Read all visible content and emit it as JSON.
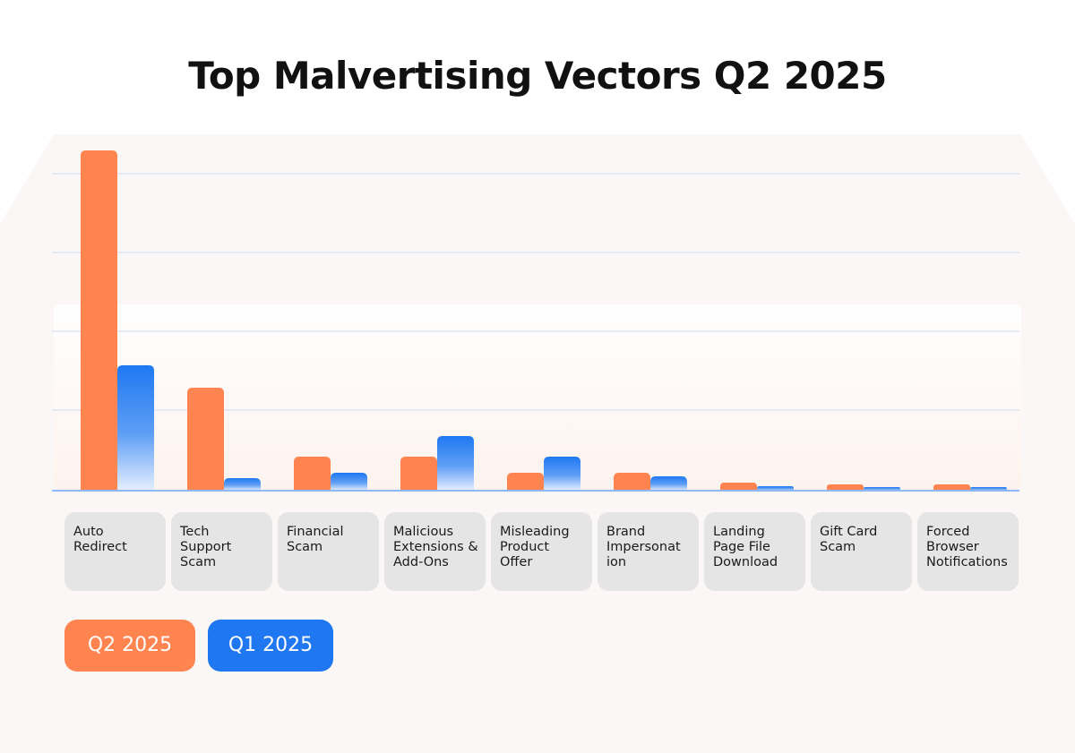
{
  "chart_data": {
    "type": "bar",
    "title": "Top Malvertising Vectors Q2 2025",
    "xlabel": "",
    "ylabel": "",
    "ylim": [
      0,
      430
    ],
    "grid": true,
    "legend_position": "bottom-left",
    "categories": [
      "Auto Redirect",
      "Tech Support Scam",
      "Financial Scam",
      "Malicious Extensions & Add-Ons",
      "Misleading Product Offer",
      "Brand Impersonation",
      "Landing Page File Download",
      "Gift Card Scam",
      "Forced Browser Notifications"
    ],
    "category_display": [
      "Auto\nRedirect",
      "Tech\nSupport\nScam",
      "Financial\nScam",
      "Malicious\nExtensions &\nAdd-Ons",
      "Misleading\nProduct\nOffer",
      "Brand\nImpersonat\nion",
      "Landing\nPage File\nDownload",
      "Gift Card\nScam",
      "Forced\nBrowser\nNotifications"
    ],
    "series": [
      {
        "name": "Q2 2025",
        "color": "#ff8450",
        "values": [
          380,
          115,
          38,
          38,
          20,
          20,
          9,
          7,
          7
        ]
      },
      {
        "name": "Q1 2025",
        "color": "#1f78f2",
        "values": [
          140,
          14,
          20,
          61,
          38,
          16,
          5,
          4,
          4
        ]
      }
    ]
  },
  "legend": {
    "q2_label": "Q2 2025",
    "q1_label": "Q1 2025"
  }
}
